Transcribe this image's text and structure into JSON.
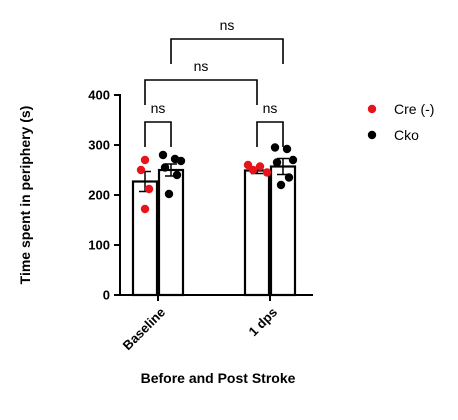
{
  "chart_data": {
    "type": "bar",
    "categories": [
      "Baseline",
      "1 dps"
    ],
    "xlabel": "Before and Post Stroke",
    "ylabel": "Time spent in periphery (s)",
    "ylim": [
      0,
      400
    ],
    "yticks": [
      0,
      100,
      200,
      300,
      400
    ],
    "grid": false,
    "legend_position": "right",
    "series": [
      {
        "name": "Cre (-)",
        "color": "#e8141b",
        "values": [
          227,
          249
        ],
        "sem": [
          20,
          6
        ],
        "points": [
          [
            270,
            250,
            212,
            172
          ],
          [
            260,
            257,
            250,
            245
          ]
        ]
      },
      {
        "name": "Cko",
        "color": "#000000",
        "values": [
          250,
          257
        ],
        "sem": [
          12,
          16
        ],
        "points": [
          [
            280,
            272,
            268,
            255,
            240,
            202
          ],
          [
            295,
            292,
            270,
            265,
            235,
            220
          ]
        ]
      }
    ],
    "comparisons": [
      {
        "label": "ns",
        "from": [
          0,
          0
        ],
        "to": [
          0,
          1
        ],
        "y": 346
      },
      {
        "label": "ns",
        "from": [
          1,
          0
        ],
        "to": [
          1,
          1
        ],
        "y": 346
      },
      {
        "label": "ns",
        "from": [
          0,
          0
        ],
        "to": [
          1,
          0
        ],
        "y": 430
      },
      {
        "label": "ns",
        "from": [
          0,
          1
        ],
        "to": [
          1,
          1
        ],
        "y": 512
      }
    ]
  }
}
